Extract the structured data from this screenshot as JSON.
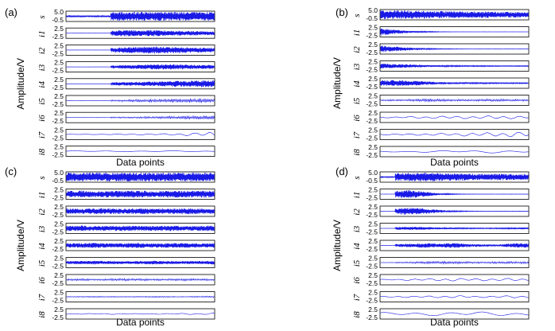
{
  "chart_data": [
    {
      "type": "line",
      "panel": "(a)",
      "xlabel": "Data points",
      "ylabel": "Amplitude/V",
      "series": [
        {
          "name": "s",
          "yticks": [
            "5.0",
            "-0.5"
          ],
          "burst_start": 0.3,
          "envelope": [
            0.15,
            0.15,
            0.15,
            0.95,
            0.95,
            0.95,
            0.95,
            0.95,
            0.95,
            0.95,
            0.95
          ],
          "style": "dense"
        },
        {
          "name": "i1",
          "yticks": [
            "2.5",
            "-2.5"
          ],
          "burst_start": 0.3,
          "envelope": [
            0.02,
            0.02,
            0.02,
            0.55,
            0.75,
            0.6,
            0.7,
            0.55,
            0.5,
            0.45,
            0.4
          ],
          "style": "dense"
        },
        {
          "name": "i2",
          "yticks": [
            "2.5",
            "-2.5"
          ],
          "burst_start": 0.3,
          "envelope": [
            0.02,
            0.02,
            0.02,
            0.45,
            0.6,
            0.7,
            0.8,
            0.7,
            0.6,
            0.55,
            0.5
          ],
          "style": "dense"
        },
        {
          "name": "i3",
          "yticks": [
            "2.5",
            "-2.5"
          ],
          "burst_start": 0.3,
          "envelope": [
            0.02,
            0.02,
            0.02,
            0.3,
            0.4,
            0.45,
            0.55,
            0.55,
            0.5,
            0.45,
            0.4
          ],
          "style": "dense"
        },
        {
          "name": "i4",
          "yticks": [
            "2.5",
            "-2.5"
          ],
          "burst_start": 0.3,
          "envelope": [
            0.02,
            0.02,
            0.02,
            0.35,
            0.4,
            0.45,
            0.5,
            0.6,
            0.65,
            0.7,
            0.75
          ],
          "style": "dense"
        },
        {
          "name": "i5",
          "yticks": [
            "2.5",
            "-2.5"
          ],
          "burst_start": 0.3,
          "envelope": [
            0.05,
            0.05,
            0.05,
            0.2,
            0.25,
            0.3,
            0.35,
            0.4,
            0.45,
            0.5,
            0.45
          ],
          "style": "medium"
        },
        {
          "name": "i6",
          "yticks": [
            "2.5",
            "-2.5"
          ],
          "burst_start": 0.3,
          "envelope": [
            0.05,
            0.05,
            0.05,
            0.15,
            0.15,
            0.2,
            0.25,
            0.3,
            0.35,
            0.45,
            0.4
          ],
          "style": "medium"
        },
        {
          "name": "i7",
          "yticks": [
            "2.5",
            "-2.5"
          ],
          "burst_start": 0.3,
          "envelope": [
            0.05,
            0.05,
            0.05,
            0.1,
            0.1,
            0.12,
            0.15,
            0.2,
            0.3,
            0.45,
            0.8
          ],
          "style": "wave"
        },
        {
          "name": "i8",
          "yticks": [
            "2.5",
            "-2.5"
          ],
          "burst_start": 0.0,
          "envelope": [
            0.1,
            0.1,
            0.1,
            0.1,
            0.1,
            0.1,
            0.1,
            0.1,
            0.1,
            0.1,
            0.1
          ],
          "style": "slow"
        }
      ]
    },
    {
      "type": "line",
      "panel": "(b)",
      "xlabel": "Data points",
      "ylabel": "Amplitude/V",
      "series": [
        {
          "name": "s",
          "yticks": [
            "5.0",
            "-0.5"
          ],
          "burst_start": 0.0,
          "envelope": [
            0.95,
            0.95,
            0.9,
            0.85,
            0.8,
            0.75,
            0.7,
            0.7,
            0.65,
            0.6,
            0.55
          ],
          "style": "dense"
        },
        {
          "name": "i1",
          "yticks": [
            "2.5",
            "-2.5"
          ],
          "burst_start": 0.0,
          "envelope": [
            0.8,
            0.45,
            0.2,
            0.1,
            0.05,
            0.03,
            0.02,
            0.02,
            0.02,
            0.02,
            0.02
          ],
          "style": "dense"
        },
        {
          "name": "i2",
          "yticks": [
            "2.5",
            "-2.5"
          ],
          "burst_start": 0.0,
          "envelope": [
            0.75,
            0.5,
            0.3,
            0.15,
            0.08,
            0.05,
            0.03,
            0.03,
            0.03,
            0.03,
            0.03
          ],
          "style": "dense"
        },
        {
          "name": "i3",
          "yticks": [
            "2.5",
            "-2.5"
          ],
          "burst_start": 0.0,
          "envelope": [
            0.55,
            0.45,
            0.35,
            0.25,
            0.15,
            0.12,
            0.1,
            0.1,
            0.08,
            0.08,
            0.08
          ],
          "style": "dense"
        },
        {
          "name": "i4",
          "yticks": [
            "2.5",
            "-2.5"
          ],
          "burst_start": 0.0,
          "envelope": [
            0.6,
            0.65,
            0.55,
            0.4,
            0.25,
            0.2,
            0.15,
            0.12,
            0.1,
            0.1,
            0.1
          ],
          "style": "dense"
        },
        {
          "name": "i5",
          "yticks": [
            "2.5",
            "-2.5"
          ],
          "burst_start": 0.0,
          "envelope": [
            0.15,
            0.2,
            0.25,
            0.35,
            0.3,
            0.25,
            0.2,
            0.25,
            0.3,
            0.25,
            0.2
          ],
          "style": "medium"
        },
        {
          "name": "i6",
          "yticks": [
            "2.5",
            "-2.5"
          ],
          "burst_start": 0.0,
          "envelope": [
            0.1,
            0.15,
            0.2,
            0.25,
            0.3,
            0.35,
            0.3,
            0.35,
            0.4,
            0.35,
            0.3
          ],
          "style": "wave"
        },
        {
          "name": "i7",
          "yticks": [
            "2.5",
            "-2.5"
          ],
          "burst_start": 0.0,
          "envelope": [
            0.1,
            0.15,
            0.2,
            0.25,
            0.3,
            0.35,
            0.4,
            0.45,
            0.5,
            0.6,
            0.7
          ],
          "style": "wave"
        },
        {
          "name": "i8",
          "yticks": [
            "2.5",
            "-2.5"
          ],
          "burst_start": 0.0,
          "envelope": [
            0.1,
            0.12,
            0.15,
            0.18,
            0.2,
            0.22,
            0.25,
            0.28,
            0.3,
            0.3,
            0.3
          ],
          "style": "slow"
        }
      ]
    },
    {
      "type": "line",
      "panel": "(c)",
      "xlabel": "Data points",
      "ylabel": "Amplitude/V",
      "series": [
        {
          "name": "s",
          "yticks": [
            "5.0",
            "-0.5"
          ],
          "burst_start": 0.0,
          "envelope": [
            0.95,
            0.95,
            0.95,
            0.95,
            0.95,
            0.95,
            0.95,
            0.95,
            0.95,
            0.95,
            0.95
          ],
          "style": "dense"
        },
        {
          "name": "i1",
          "yticks": [
            "2.5",
            "-2.5"
          ],
          "burst_start": 0.0,
          "envelope": [
            0.7,
            0.8,
            0.65,
            0.75,
            0.7,
            0.8,
            0.65,
            0.75,
            0.7,
            0.8,
            0.7
          ],
          "style": "dense"
        },
        {
          "name": "i2",
          "yticks": [
            "2.5",
            "-2.5"
          ],
          "burst_start": 0.0,
          "envelope": [
            0.6,
            0.55,
            0.65,
            0.6,
            0.55,
            0.65,
            0.6,
            0.55,
            0.65,
            0.6,
            0.55
          ],
          "style": "dense"
        },
        {
          "name": "i3",
          "yticks": [
            "2.5",
            "-2.5"
          ],
          "burst_start": 0.0,
          "envelope": [
            0.55,
            0.6,
            0.5,
            0.55,
            0.6,
            0.5,
            0.55,
            0.6,
            0.5,
            0.55,
            0.6
          ],
          "style": "dense"
        },
        {
          "name": "i4",
          "yticks": [
            "2.5",
            "-2.5"
          ],
          "burst_start": 0.0,
          "envelope": [
            0.45,
            0.5,
            0.55,
            0.45,
            0.5,
            0.55,
            0.45,
            0.5,
            0.55,
            0.45,
            0.5
          ],
          "style": "dense"
        },
        {
          "name": "i5",
          "yticks": [
            "2.5",
            "-2.5"
          ],
          "burst_start": 0.0,
          "envelope": [
            0.3,
            0.35,
            0.4,
            0.35,
            0.3,
            0.35,
            0.4,
            0.35,
            0.3,
            0.35,
            0.4
          ],
          "style": "dense"
        },
        {
          "name": "i6",
          "yticks": [
            "2.5",
            "-2.5"
          ],
          "burst_start": 0.0,
          "envelope": [
            0.2,
            0.25,
            0.2,
            0.25,
            0.3,
            0.25,
            0.2,
            0.25,
            0.3,
            0.25,
            0.2
          ],
          "style": "medium"
        },
        {
          "name": "i7",
          "yticks": [
            "2.5",
            "-2.5"
          ],
          "burst_start": 0.0,
          "envelope": [
            0.1,
            0.12,
            0.15,
            0.12,
            0.1,
            0.12,
            0.15,
            0.12,
            0.1,
            0.15,
            0.2
          ],
          "style": "medium"
        },
        {
          "name": "i8",
          "yticks": [
            "2.5",
            "-2.5"
          ],
          "burst_start": 0.0,
          "envelope": [
            0.08,
            0.1,
            0.1,
            0.12,
            0.1,
            0.08,
            0.1,
            0.12,
            0.15,
            0.15,
            0.2
          ],
          "style": "wave"
        }
      ]
    },
    {
      "type": "line",
      "panel": "(d)",
      "xlabel": "Data points",
      "ylabel": "Amplitude/V",
      "series": [
        {
          "name": "s",
          "yticks": [
            "5.0",
            "-0.5"
          ],
          "burst_start": 0.1,
          "envelope": [
            0.1,
            0.85,
            0.95,
            0.95,
            0.9,
            0.8,
            0.75,
            0.7,
            0.7,
            0.65,
            0.6
          ],
          "style": "dense"
        },
        {
          "name": "i1",
          "yticks": [
            "2.5",
            "-2.5"
          ],
          "burst_start": 0.1,
          "envelope": [
            0.02,
            0.7,
            0.9,
            0.5,
            0.2,
            0.08,
            0.04,
            0.03,
            0.03,
            0.03,
            0.03
          ],
          "style": "dense"
        },
        {
          "name": "i2",
          "yticks": [
            "2.5",
            "-2.5"
          ],
          "burst_start": 0.1,
          "envelope": [
            0.02,
            0.6,
            0.85,
            0.6,
            0.3,
            0.12,
            0.06,
            0.04,
            0.04,
            0.04,
            0.04
          ],
          "style": "dense"
        },
        {
          "name": "i3",
          "yticks": [
            "2.5",
            "-2.5"
          ],
          "burst_start": 0.1,
          "envelope": [
            0.02,
            0.3,
            0.35,
            0.3,
            0.2,
            0.15,
            0.1,
            0.08,
            0.1,
            0.15,
            0.2
          ],
          "style": "dense"
        },
        {
          "name": "i4",
          "yticks": [
            "2.5",
            "-2.5"
          ],
          "burst_start": 0.1,
          "envelope": [
            0.02,
            0.3,
            0.4,
            0.5,
            0.4,
            0.55,
            0.35,
            0.25,
            0.2,
            0.5,
            0.45
          ],
          "style": "dense"
        },
        {
          "name": "i5",
          "yticks": [
            "2.5",
            "-2.5"
          ],
          "burst_start": 0.1,
          "envelope": [
            0.05,
            0.15,
            0.2,
            0.3,
            0.35,
            0.3,
            0.25,
            0.2,
            0.25,
            0.3,
            0.25
          ],
          "style": "medium"
        },
        {
          "name": "i6",
          "yticks": [
            "2.5",
            "-2.5"
          ],
          "burst_start": 0.05,
          "envelope": [
            0.1,
            0.15,
            0.2,
            0.25,
            0.3,
            0.35,
            0.3,
            0.25,
            0.3,
            0.35,
            0.3
          ],
          "style": "wave"
        },
        {
          "name": "i7",
          "yticks": [
            "2.5",
            "-2.5"
          ],
          "burst_start": 0.0,
          "envelope": [
            0.1,
            0.15,
            0.2,
            0.2,
            0.25,
            0.3,
            0.25,
            0.2,
            0.25,
            0.3,
            0.25
          ],
          "style": "wave"
        },
        {
          "name": "i8",
          "yticks": [
            "2.5",
            "-2.5"
          ],
          "burst_start": 0.0,
          "envelope": [
            0.3,
            0.35,
            0.4,
            0.35,
            0.4,
            0.45,
            0.5,
            0.45,
            0.4,
            0.45,
            0.4
          ],
          "style": "slow"
        }
      ]
    }
  ],
  "colors": {
    "signal": "#1a1ae6",
    "frame": "#000000"
  }
}
